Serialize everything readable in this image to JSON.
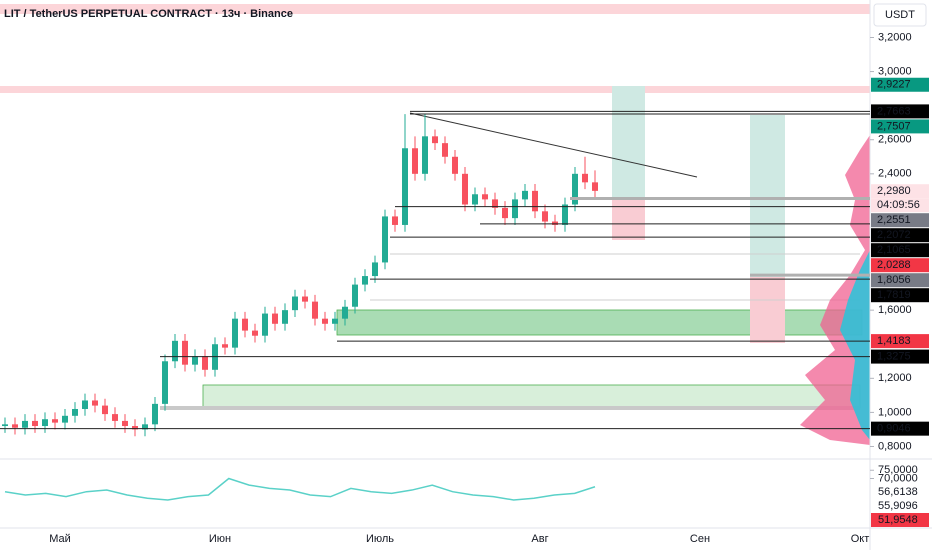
{
  "chart_data": {
    "type": "candlestick",
    "title": "LIT / TetherUS PERPETUAL CONTRACT · 13ч · Binance",
    "currency": "USDT",
    "x_labels": [
      "Май",
      "Июн",
      "Июль",
      "Авг",
      "Сен",
      "Окт"
    ],
    "open": [
      0.92,
      0.93,
      0.91,
      0.95,
      0.92,
      0.96,
      0.94,
      0.98,
      1.02,
      1.07,
      1.04,
      0.99,
      0.95,
      0.92,
      0.9,
      0.93,
      1.05,
      1.3,
      1.42,
      1.28,
      1.33,
      1.25,
      1.4,
      1.38,
      1.55,
      1.48,
      1.45,
      1.58,
      1.52,
      1.6,
      1.68,
      1.65,
      1.55,
      1.52,
      1.55,
      1.62,
      1.75,
      1.8,
      1.88,
      2.15,
      2.1,
      2.55,
      2.4,
      2.62,
      2.58,
      2.5,
      2.4,
      2.22,
      2.28,
      2.25,
      2.2,
      2.14,
      2.25,
      2.3,
      2.18,
      2.12,
      2.1,
      2.22,
      2.4,
      2.35
    ],
    "high": [
      0.97,
      0.97,
      0.99,
      0.99,
      1.0,
      1.0,
      1.02,
      1.06,
      1.11,
      1.11,
      1.08,
      1.03,
      0.99,
      0.96,
      0.97,
      1.09,
      1.34,
      1.46,
      1.46,
      1.37,
      1.37,
      1.44,
      1.44,
      1.59,
      1.59,
      1.52,
      1.62,
      1.62,
      1.64,
      1.72,
      1.72,
      1.69,
      1.59,
      1.59,
      1.66,
      1.79,
      1.84,
      1.92,
      2.19,
      2.19,
      2.75,
      2.62,
      2.75,
      2.66,
      2.62,
      2.54,
      2.44,
      2.32,
      2.32,
      2.29,
      2.24,
      2.29,
      2.34,
      2.34,
      2.22,
      2.16,
      2.26,
      2.44,
      2.5,
      2.42
    ],
    "low": [
      0.88,
      0.87,
      0.87,
      0.88,
      0.88,
      0.9,
      0.9,
      0.94,
      0.98,
      1.0,
      0.95,
      0.91,
      0.88,
      0.86,
      0.86,
      0.89,
      1.01,
      1.26,
      1.24,
      1.24,
      1.21,
      1.21,
      1.34,
      1.34,
      1.44,
      1.41,
      1.41,
      1.48,
      1.48,
      1.56,
      1.61,
      1.51,
      1.48,
      1.48,
      1.51,
      1.58,
      1.71,
      1.76,
      1.84,
      2.06,
      2.06,
      2.36,
      2.36,
      2.54,
      2.46,
      2.36,
      2.18,
      2.18,
      2.21,
      2.16,
      2.1,
      2.1,
      2.21,
      2.14,
      2.08,
      2.06,
      2.06,
      2.18,
      2.31,
      2.26
    ],
    "close": [
      0.93,
      0.91,
      0.95,
      0.92,
      0.96,
      0.94,
      0.98,
      1.02,
      1.07,
      1.04,
      0.99,
      0.95,
      0.92,
      0.9,
      0.93,
      1.05,
      1.3,
      1.42,
      1.28,
      1.33,
      1.25,
      1.4,
      1.38,
      1.55,
      1.48,
      1.45,
      1.58,
      1.52,
      1.6,
      1.68,
      1.65,
      1.55,
      1.52,
      1.55,
      1.62,
      1.75,
      1.8,
      1.88,
      2.15,
      2.1,
      2.55,
      2.4,
      2.62,
      2.58,
      2.5,
      2.4,
      2.22,
      2.28,
      2.25,
      2.2,
      2.14,
      2.25,
      2.3,
      2.18,
      2.12,
      2.1,
      2.22,
      2.4,
      2.35,
      2.3
    ],
    "up_color": "#22ab94",
    "down_color": "#f7525f",
    "ylim": [
      0.75,
      3.42
    ],
    "yticks": [
      {
        "value": 3.2,
        "label": "3,2000"
      },
      {
        "value": 3.0,
        "label": "3,0000"
      },
      {
        "value": 2.6,
        "label": "2,6000"
      },
      {
        "value": 2.4,
        "label": "2,4000"
      },
      {
        "value": 1.6,
        "label": "1,6000"
      },
      {
        "value": 1.2,
        "label": "1,2000"
      },
      {
        "value": 1.0,
        "label": "1,0000"
      },
      {
        "value": 0.8,
        "label": "0,8000"
      }
    ],
    "price_labels": [
      {
        "value": 2.9227,
        "label": "2,9227",
        "color": "#089981"
      },
      {
        "value": 2.7663,
        "label": "2,7663",
        "color": "#000000"
      },
      {
        "value": 2.7507,
        "label": "2,7507",
        "color": "#089981"
      },
      {
        "value": 2.298,
        "label": "2,2980",
        "color": "#fde2e6"
      },
      {
        "value": 2.2551,
        "label": "2,2551",
        "color": "#787b86"
      },
      {
        "value": 2.2072,
        "label": "2,2072",
        "color": "#000000"
      },
      {
        "value": 2.1065,
        "label": "2,1065",
        "color": "#000000"
      },
      {
        "value": 2.0288,
        "label": "2,0288",
        "color": "#f23645"
      },
      {
        "value": 1.8056,
        "label": "1,8056",
        "color": "#787b86"
      },
      {
        "value": 1.7819,
        "label": "1,7819",
        "color": "#000000"
      },
      {
        "value": 1.4183,
        "label": "1,4183",
        "color": "#f23645"
      },
      {
        "value": 1.3275,
        "label": "1,3275",
        "color": "#000000"
      },
      {
        "value": 0.9046,
        "label": "0,9046",
        "color": "#000000"
      }
    ],
    "countdown": "04:09:56",
    "oscillator": {
      "values": [
        62,
        60,
        61,
        59,
        62,
        63,
        60,
        58,
        57,
        59,
        60,
        70,
        66,
        64,
        63,
        60,
        59,
        64,
        62,
        61,
        63,
        66,
        62,
        60,
        59,
        57,
        58,
        60,
        61,
        65
      ],
      "color": "#5ad1c8",
      "ylim": [
        40,
        80
      ],
      "yticks": [
        {
          "value": 75,
          "label": "75,0000"
        },
        {
          "value": 70,
          "label": "70,0000"
        }
      ],
      "value_labels": [
        {
          "value": 56.6138,
          "label": "56,6138",
          "color": "#ffffff"
        },
        {
          "value": 55.9096,
          "label": "55,9096",
          "color": "#ffffff"
        },
        {
          "value": 51.9548,
          "label": "51,9548",
          "color": "#f23645"
        }
      ]
    }
  }
}
